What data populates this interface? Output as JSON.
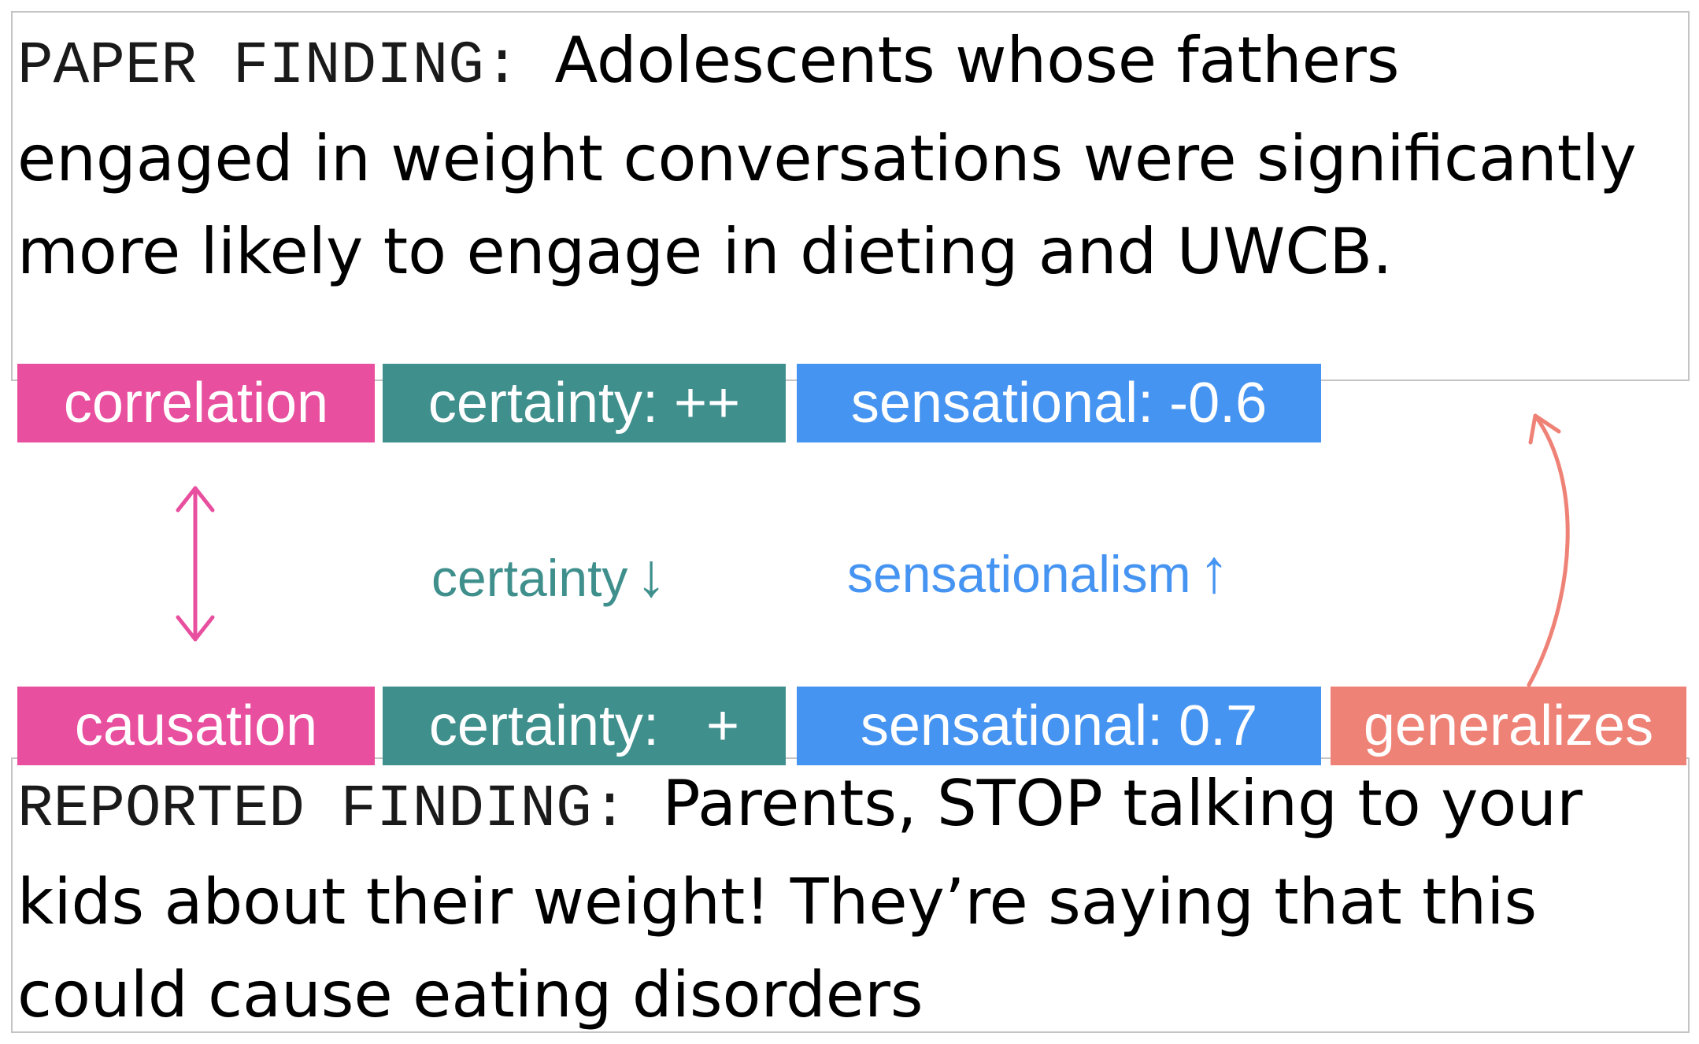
{
  "paper_finding": {
    "label": "PAPER FINDING:",
    "text": "Adolescents whose fathers engaged in weight conversations were significantly more likely to engage in dieting and UWCB."
  },
  "reported_finding": {
    "label": "REPORTED FINDING:",
    "text": "Parents, STOP talking to your kids about their weight! They’re saying that this could cause eating disorders"
  },
  "paper_tags": {
    "relation": "correlation",
    "certainty": "certainty: ++",
    "sensational": "sensational: -0.6"
  },
  "reported_tags": {
    "relation": "causation",
    "certainty": "certainty:   +",
    "sensational": "sensational: 0.7",
    "generalizes": "generalizes"
  },
  "changes": {
    "certainty_label": "certainty",
    "certainty_arrow": "↓",
    "sensationalism_label": "sensationalism",
    "sensationalism_arrow": "↑"
  },
  "colors": {
    "relation": "#e84f9e",
    "certainty": "#3f8f8d",
    "sensational": "#4694f2",
    "generalizes": "#ef8276",
    "box_border": "#c4c4c4"
  },
  "icons": {
    "relation_link": "double-headed-arrow-icon",
    "generalization_link": "curved-arrow-icon"
  }
}
